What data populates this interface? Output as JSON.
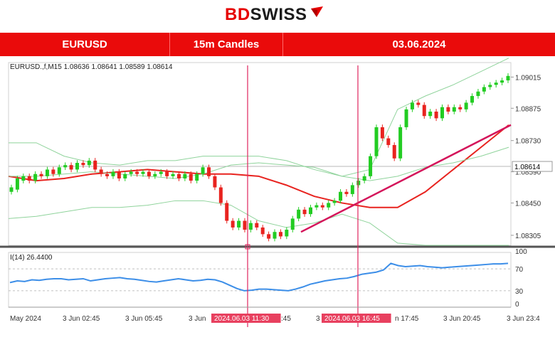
{
  "logo": {
    "brand_bd": "BD",
    "brand_swiss": "SWISS"
  },
  "header": {
    "symbol": "EURUSD",
    "timeframe": "15m Candles",
    "date": "03.06.2024"
  },
  "chart_data": {
    "type": "candlestick",
    "info_line": "EURUSD.,f,M15  1.08636 1.08641 1.08589 1.08614",
    "price_ticks": [
      "1.09015",
      "1.08875",
      "1.08730",
      "1.08590",
      "1.08450",
      "1.08305"
    ],
    "current_price": "1.08614",
    "ylim": [
      1.0826,
      1.0908
    ],
    "time_ticks": [
      "May 2024",
      "3 Jun 02:45",
      "3 Jun 05:45",
      "3 Jun",
      "2024.06.03 11:30",
      ":45",
      "3",
      "2024.06.03 16:45",
      "n 17:45",
      "3 Jun 20:45",
      "3 Jun 23:4"
    ],
    "markers": [
      "2024.06.03 11:30",
      "2024.06.03 16:45"
    ],
    "candles": [
      [
        1.085,
        1.0852
      ],
      [
        1.0851,
        1.0856
      ],
      [
        1.0855,
        1.0857
      ],
      [
        1.0857,
        1.0855
      ],
      [
        1.0855,
        1.0858
      ],
      [
        1.0858,
        1.0857
      ],
      [
        1.0857,
        1.086
      ],
      [
        1.086,
        1.0858
      ],
      [
        1.0858,
        1.0861
      ],
      [
        1.0861,
        1.0862
      ],
      [
        1.0862,
        1.086
      ],
      [
        1.086,
        1.0863
      ],
      [
        1.0863,
        1.0862
      ],
      [
        1.0862,
        1.0864
      ],
      [
        1.0864,
        1.086
      ],
      [
        1.086,
        1.0858
      ],
      [
        1.0858,
        1.0857
      ],
      [
        1.0857,
        1.0859
      ],
      [
        1.0859,
        1.0856
      ],
      [
        1.0856,
        1.0858
      ],
      [
        1.0858,
        1.0859
      ],
      [
        1.0859,
        1.0858
      ],
      [
        1.0858,
        1.0859
      ],
      [
        1.0859,
        1.0857
      ],
      [
        1.0857,
        1.0858
      ],
      [
        1.0858,
        1.0859
      ],
      [
        1.0859,
        1.0857
      ],
      [
        1.0857,
        1.0858
      ],
      [
        1.0858,
        1.0856
      ],
      [
        1.0856,
        1.0858
      ],
      [
        1.0858,
        1.0855
      ],
      [
        1.0855,
        1.0858
      ],
      [
        1.0858,
        1.0861
      ],
      [
        1.0861,
        1.0857
      ],
      [
        1.0857,
        1.0852
      ],
      [
        1.0852,
        1.0845
      ],
      [
        1.0845,
        1.0837
      ],
      [
        1.0837,
        1.0834
      ],
      [
        1.0834,
        1.0837
      ],
      [
        1.0837,
        1.0833
      ],
      [
        1.0833,
        1.0836
      ],
      [
        1.0836,
        1.0834
      ],
      [
        1.0834,
        1.0831
      ],
      [
        1.0831,
        1.0829
      ],
      [
        1.0829,
        1.0832
      ],
      [
        1.0832,
        1.083
      ],
      [
        1.083,
        1.0833
      ],
      [
        1.0833,
        1.0838
      ],
      [
        1.0838,
        1.0842
      ],
      [
        1.0842,
        1.084
      ],
      [
        1.084,
        1.0843
      ],
      [
        1.0843,
        1.0844
      ],
      [
        1.0844,
        1.0843
      ],
      [
        1.0843,
        1.0845
      ],
      [
        1.0845,
        1.0846
      ],
      [
        1.0846,
        1.085
      ],
      [
        1.085,
        1.0849
      ],
      [
        1.0849,
        1.0853
      ],
      [
        1.0853,
        1.0855
      ],
      [
        1.0855,
        1.0857
      ],
      [
        1.0857,
        1.0866
      ],
      [
        1.0866,
        1.0879
      ],
      [
        1.0879,
        1.0874
      ],
      [
        1.0874,
        1.0871
      ],
      [
        1.0871,
        1.0865
      ],
      [
        1.0865,
        1.0879
      ],
      [
        1.0879,
        1.0887
      ],
      [
        1.0887,
        1.089
      ],
      [
        1.089,
        1.0889
      ],
      [
        1.0889,
        1.0884
      ],
      [
        1.0884,
        1.0886
      ],
      [
        1.0886,
        1.0883
      ],
      [
        1.0883,
        1.0888
      ],
      [
        1.0888,
        1.0886
      ],
      [
        1.0886,
        1.0888
      ],
      [
        1.0888,
        1.0887
      ],
      [
        1.0887,
        1.089
      ],
      [
        1.089,
        1.0893
      ],
      [
        1.0893,
        1.0895
      ],
      [
        1.0895,
        1.0897
      ],
      [
        1.0897,
        1.0898
      ],
      [
        1.0898,
        1.0899
      ],
      [
        1.0899,
        1.09
      ],
      [
        1.09,
        1.0902
      ]
    ],
    "series": [
      {
        "name": "moving average",
        "color": "#e8231f",
        "values": [
          1.0857,
          1.0855,
          1.0856,
          1.0858,
          1.0859,
          1.086,
          1.0859,
          1.0858,
          1.0858,
          1.0857,
          1.0853,
          1.0848,
          1.0845,
          1.0843,
          1.0843,
          1.085,
          1.086,
          1.087,
          1.088
        ]
      },
      {
        "name": "bollinger upper",
        "color": "#8fd39b",
        "values": [
          1.0872,
          1.0872,
          1.0866,
          1.0863,
          1.0862,
          1.0864,
          1.0864,
          1.0866,
          1.0866,
          1.0866,
          1.0864,
          1.086,
          1.0857,
          1.086,
          1.0887,
          1.0893,
          1.0898,
          1.0904,
          1.091
        ]
      },
      {
        "name": "bollinger middle",
        "color": "#8fd39b",
        "values": [
          1.0857,
          1.0857,
          1.0858,
          1.0859,
          1.0858,
          1.0857,
          1.0856,
          1.0858,
          1.0862,
          1.0863,
          1.0862,
          1.0861,
          1.0857,
          1.0855,
          1.0857,
          1.0861,
          1.0863,
          1.0866,
          1.087
        ]
      },
      {
        "name": "bollinger lower",
        "color": "#8fd39b",
        "values": [
          1.0838,
          1.0839,
          1.0841,
          1.0843,
          1.0843,
          1.0844,
          1.0846,
          1.0846,
          1.0844,
          1.0837,
          1.0834,
          1.0836,
          1.084,
          1.0836,
          1.0827,
          1.0826,
          1.0826,
          1.0826,
          1.0826
        ]
      },
      {
        "name": "trendline",
        "color": "#d4145a",
        "values": [
          1.0832,
          1.088
        ]
      }
    ],
    "rsi": {
      "label": "I(14) 26.4400",
      "ticks": [
        "100",
        "70",
        "30",
        "0"
      ],
      "levels": [
        70,
        30
      ],
      "values": [
        45,
        48,
        47,
        50,
        49,
        51,
        52,
        52,
        50,
        51,
        52,
        48,
        50,
        52,
        53,
        54,
        52,
        51,
        49,
        47,
        46,
        48,
        50,
        52,
        50,
        48,
        49,
        51,
        50,
        46,
        40,
        34,
        30,
        31,
        33,
        33,
        32,
        31,
        30,
        33,
        37,
        42,
        45,
        48,
        50,
        52,
        53,
        56,
        60,
        62,
        64,
        68,
        80,
        76,
        74,
        75,
        76,
        74,
        73,
        72,
        73,
        74,
        75,
        76,
        77,
        78,
        79,
        79,
        80
      ]
    }
  },
  "colors": {
    "accent": "#ea0b0b",
    "bull": "#22cc22",
    "bear": "#e8231f",
    "ma": "#e8231f",
    "bands": "#8fd39b",
    "rsi": "#3c8ee8",
    "marker": "#e0245e"
  }
}
